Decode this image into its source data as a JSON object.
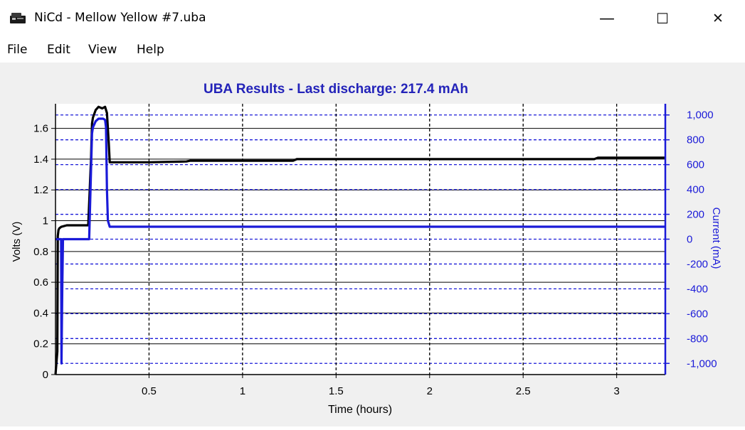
{
  "window": {
    "title": "NiCd - Mellow Yellow #7.uba",
    "icon": "battery-charger-icon",
    "controls": {
      "minimize": "—",
      "maximize": "☐",
      "close": "✕"
    }
  },
  "menu": {
    "items": [
      "File",
      "Edit",
      "View",
      "Help"
    ]
  },
  "colors": {
    "voltage": "#000000",
    "current": "#1a1ad8",
    "title": "#2323b9",
    "client_bg": "#f0f0f0"
  },
  "chart_data": {
    "type": "line",
    "title": "UBA Results - Last discharge: 217.4 mAh",
    "xlabel": "Time (hours)",
    "ylabel": "Volts (V)",
    "y2label": "Current (mA)",
    "xlim": [
      0,
      3.26
    ],
    "ylim": [
      0,
      1.76
    ],
    "y2lim": [
      -1090,
      1090
    ],
    "x_ticks": [
      0.5,
      1,
      1.5,
      2,
      2.5,
      3
    ],
    "x_tick_labels": [
      "0.5",
      "1",
      "1.5",
      "2",
      "2.5",
      "3"
    ],
    "y_ticks": [
      0,
      0.2,
      0.4,
      0.6,
      0.8,
      1,
      1.2,
      1.4,
      1.6
    ],
    "y_tick_labels": [
      "0",
      "0.2",
      "0.4",
      "0.6",
      "0.8",
      "1",
      "1.2",
      "1.4",
      "1.6"
    ],
    "y2_ticks": [
      -1000,
      -800,
      -600,
      -400,
      -200,
      0,
      200,
      400,
      600,
      800,
      1000
    ],
    "y2_tick_labels": [
      "-1,000",
      "-800",
      "-600",
      "-400",
      "-200",
      "0",
      "200",
      "400",
      "600",
      "800",
      "1,000"
    ],
    "grid": true,
    "series": [
      {
        "axis": "left",
        "color": "#000000",
        "x": [
          0.0,
          0.01,
          0.012,
          0.016,
          0.02,
          0.03,
          0.06,
          0.1,
          0.14,
          0.175,
          0.19,
          0.195,
          0.2,
          0.215,
          0.23,
          0.25,
          0.265,
          0.275,
          0.285,
          0.29,
          0.5,
          0.7,
          0.72,
          1.0,
          1.27,
          1.29,
          1.5,
          2.0,
          2.5,
          2.88,
          2.9,
          3.0,
          3.26
        ],
        "y": [
          0.0,
          0.15,
          0.9,
          0.94,
          0.95,
          0.96,
          0.97,
          0.97,
          0.97,
          0.97,
          1.4,
          1.63,
          1.67,
          1.72,
          1.74,
          1.73,
          1.74,
          1.7,
          1.5,
          1.38,
          1.38,
          1.385,
          1.39,
          1.39,
          1.39,
          1.4,
          1.4,
          1.4,
          1.4,
          1.4,
          1.41,
          1.41,
          1.41
        ]
      },
      {
        "axis": "right",
        "color": "#1a1ad8",
        "x": [
          0.0,
          0.03,
          0.032,
          0.036,
          0.04,
          0.045,
          0.06,
          0.12,
          0.18,
          0.195,
          0.2,
          0.215,
          0.23,
          0.255,
          0.265,
          0.27,
          0.275,
          0.28,
          0.29,
          0.5,
          1.0,
          1.5,
          2.0,
          2.5,
          3.0,
          3.26
        ],
        "y": [
          0,
          0,
          -1000,
          -400,
          0,
          0,
          0,
          0,
          0,
          850,
          900,
          950,
          970,
          970,
          960,
          900,
          400,
          150,
          100,
          100,
          100,
          100,
          100,
          100,
          100,
          100
        ]
      }
    ]
  }
}
